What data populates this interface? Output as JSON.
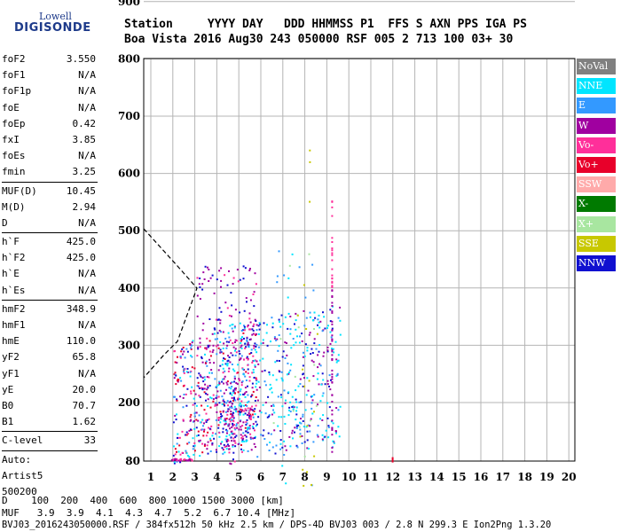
{
  "logo": {
    "line1": "Lowell",
    "line2": "DIGISONDE"
  },
  "header": {
    "row1": "Station     YYYY DAY   DDD HHMMSS P1  FFS S AXN PPS IGA PS",
    "row2": "Boa Vista 2016 Aug30 243 050000 RSF 005 2 713 100 03+ 30"
  },
  "params": [
    {
      "name": "foF2",
      "value": "3.550"
    },
    {
      "name": "foF1",
      "value": "N/A"
    },
    {
      "name": "foF1p",
      "value": "N/A"
    },
    {
      "name": "foE",
      "value": "N/A"
    },
    {
      "name": "foEp",
      "value": "0.42"
    },
    {
      "name": "fxI",
      "value": "3.85"
    },
    {
      "name": "foEs",
      "value": "N/A"
    },
    {
      "name": "fmin",
      "value": "3.25"
    },
    {
      "sep": true
    },
    {
      "name": "MUF(D)",
      "value": "10.45"
    },
    {
      "name": "M(D)",
      "value": "2.94"
    },
    {
      "name": "D",
      "value": "N/A"
    },
    {
      "sep": true
    },
    {
      "name": "h`F",
      "value": "425.0"
    },
    {
      "name": "h`F2",
      "value": "425.0"
    },
    {
      "name": "h`E",
      "value": "N/A"
    },
    {
      "name": "h`Es",
      "value": "N/A"
    },
    {
      "sep": true
    },
    {
      "name": "hmF2",
      "value": "348.9"
    },
    {
      "name": "hmF1",
      "value": "N/A"
    },
    {
      "name": "hmE",
      "value": "110.0"
    },
    {
      "name": "yF2",
      "value": "65.8"
    },
    {
      "name": "yF1",
      "value": "N/A"
    },
    {
      "name": "yE",
      "value": "20.0"
    },
    {
      "name": "B0",
      "value": "70.7"
    },
    {
      "name": "B1",
      "value": "1.62"
    },
    {
      "sep": true
    },
    {
      "name": "C-level",
      "value": "33"
    },
    {
      "sep": true
    },
    {
      "name": "Auto:",
      "value": ""
    },
    {
      "name": "Artist5",
      "value": ""
    },
    {
      "name": "500200",
      "value": ""
    }
  ],
  "axes": {
    "y_ticks": [
      "900",
      "800",
      "700",
      "600",
      "500",
      "400",
      "300",
      "200",
      "80"
    ],
    "x_ticks": [
      "1",
      "2",
      "3",
      "4",
      "5",
      "6",
      "7",
      "8",
      "9",
      "10",
      "11",
      "12",
      "13",
      "14",
      "15",
      "16",
      "17",
      "18",
      "19",
      "20"
    ]
  },
  "legend": [
    {
      "label": "NoVal",
      "color": "#808080"
    },
    {
      "label": "NNE",
      "color": "#00e5ff"
    },
    {
      "label": "E",
      "color": "#3399ff"
    },
    {
      "label": "W",
      "color": "#a000a0"
    },
    {
      "label": "Vo-",
      "color": "#ff2f9a"
    },
    {
      "label": "Vo+",
      "color": "#e8002a"
    },
    {
      "label": "SSW",
      "color": "#ffaaaa"
    },
    {
      "label": "X-",
      "color": "#007a00"
    },
    {
      "label": "X+",
      "color": "#a8e6a0"
    },
    {
      "label": "SSE",
      "color": "#c8c800"
    },
    {
      "label": "NNW",
      "color": "#1010d0"
    }
  ],
  "footer": {
    "d_row": "D    100  200  400  600  800 1000 1500 3000 [km]",
    "muf_row": "MUF   3.9  3.9  4.1  4.3  4.7  5.2  6.7 10.4 [MHz]",
    "file_row": "BVJ03_2016243050000.RSF / 384fx512h 50 kHz 2.5 km / DPS-4D BVJ03 003 / 2.8 N 299.3 E Ion2Png 1.3.20"
  }
}
